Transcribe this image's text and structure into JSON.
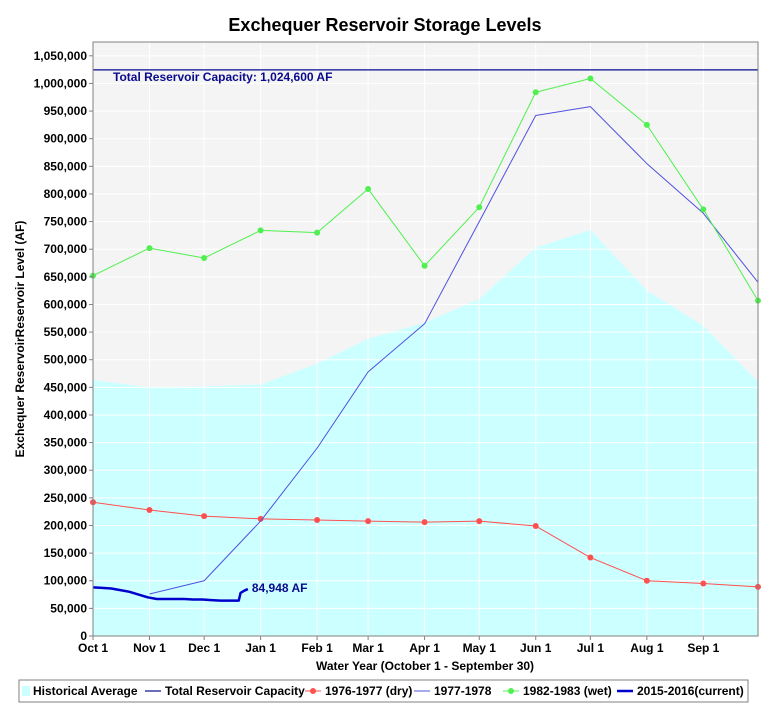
{
  "chart_data": {
    "type": "line",
    "title": "Exchequer Reservoir Storage Levels",
    "xlabel": "Water Year (October 1 - September 30)",
    "ylabel": "Exchequer ReservoirReservoir Level (AF)",
    "x_ticks": [
      "Oct 1",
      "Nov 1",
      "Dec 1",
      "Jan 1",
      "Feb 1",
      "Mar 1",
      "Apr 1",
      "May 1",
      "Jun 1",
      "Jul 1",
      "Aug 1",
      "Sep 1"
    ],
    "x_days": [
      0,
      31,
      61,
      92,
      123,
      151,
      182,
      212,
      243,
      273,
      304,
      335
    ],
    "xlim": [
      0,
      365
    ],
    "ylim": [
      0,
      1075000
    ],
    "y_ticks": [
      0,
      50000,
      100000,
      150000,
      200000,
      250000,
      300000,
      350000,
      400000,
      450000,
      500000,
      550000,
      600000,
      650000,
      700000,
      750000,
      800000,
      850000,
      900000,
      950000,
      1000000,
      1050000
    ],
    "y_tick_labels": [
      "0",
      "50,000",
      "100,000",
      "150,000",
      "200,000",
      "250,000",
      "300,000",
      "350,000",
      "400,000",
      "450,000",
      "500,000",
      "550,000",
      "600,000",
      "650,000",
      "700,000",
      "750,000",
      "800,000",
      "850,000",
      "900,000",
      "950,000",
      "1,000,000",
      "1,050,000"
    ],
    "grid": true,
    "legend_position": "bottom",
    "capacity": {
      "name": "Total Reservoir Capacity",
      "value": 1024600,
      "label": "Total Reservoir Capacity: 1,024,600 AF",
      "color": "#0a0a8c"
    },
    "current_label": "84,948 AF",
    "series": [
      {
        "name": "Historical Average",
        "kind": "area",
        "color": "#ccffff",
        "x": [
          0,
          31,
          61,
          92,
          123,
          151,
          182,
          212,
          243,
          273,
          304,
          335,
          365
        ],
        "values": [
          463000,
          450000,
          452000,
          455000,
          493000,
          538000,
          567000,
          610000,
          703000,
          735000,
          625000,
          561000,
          460000
        ]
      },
      {
        "name": "1976-1977 (dry)",
        "kind": "line-marker",
        "color": "#ff5050",
        "x": [
          0,
          31,
          61,
          92,
          123,
          151,
          182,
          212,
          243,
          273,
          304,
          335,
          365
        ],
        "values": [
          242000,
          228000,
          217000,
          212000,
          210000,
          208000,
          206000,
          208000,
          199000,
          142000,
          100000,
          95000,
          89000
        ]
      },
      {
        "name": "1977-1978",
        "kind": "line",
        "color": "#5050e0",
        "x": [
          31,
          61,
          92,
          123,
          151,
          182,
          212,
          243,
          273,
          304,
          335,
          365
        ],
        "values": [
          76000,
          100000,
          208000,
          340000,
          478000,
          565000,
          750000,
          942000,
          958000,
          855000,
          765000,
          640000
        ]
      },
      {
        "name": "1982-1983 (wet)",
        "kind": "line-marker",
        "color": "#50f050",
        "x": [
          0,
          31,
          61,
          92,
          123,
          151,
          182,
          212,
          243,
          273,
          304,
          335,
          365
        ],
        "values": [
          652000,
          702000,
          684000,
          734000,
          730000,
          809000,
          670000,
          776000,
          984000,
          1009000,
          925000,
          772000,
          607000
        ]
      },
      {
        "name": "2015-2016(current)",
        "kind": "line-bold",
        "color": "#0000cc",
        "x": [
          0,
          5,
          10,
          15,
          20,
          25,
          30,
          35,
          40,
          45,
          50,
          55,
          60,
          65,
          70,
          75,
          80,
          81,
          83,
          85
        ],
        "values": [
          88000,
          87000,
          86000,
          83000,
          80000,
          75000,
          70000,
          67000,
          67000,
          67000,
          67000,
          66000,
          66000,
          65000,
          64000,
          64000,
          64000,
          78000,
          82000,
          84948
        ]
      }
    ]
  }
}
